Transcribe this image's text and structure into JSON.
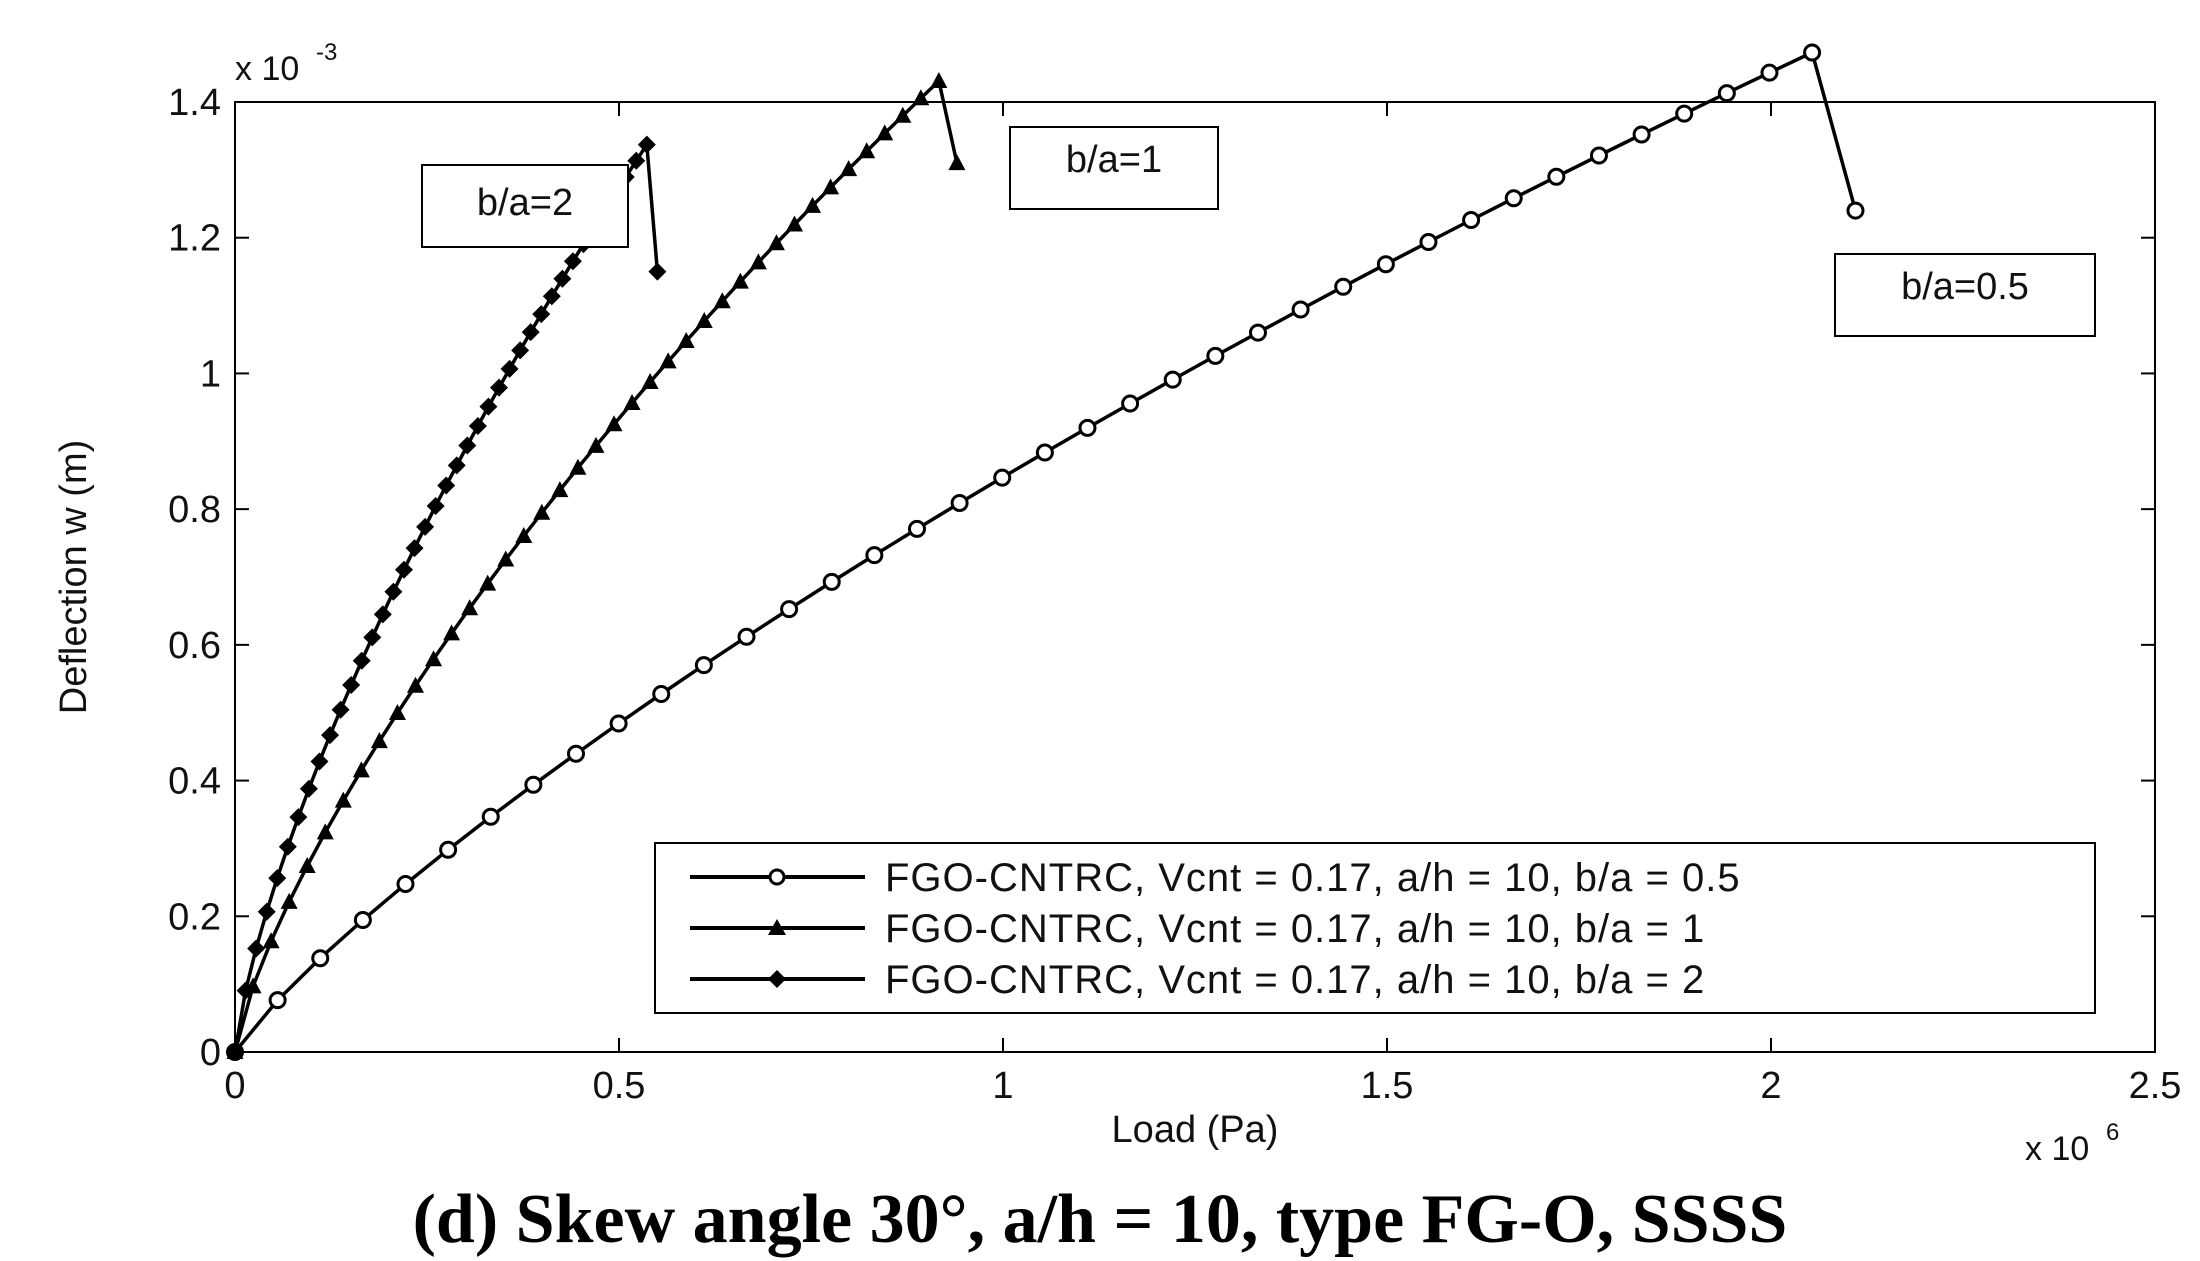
{
  "chart_data": {
    "type": "line",
    "title": "",
    "xlabel": "Load (Pa)",
    "ylabel": "Deflection w (m)",
    "x_multiplier": "x 10",
    "x_multiplier_exp": "6",
    "y_multiplier": "x 10",
    "y_multiplier_exp": "-3",
    "xlim": [
      0,
      2.5
    ],
    "ylim": [
      0,
      1.4
    ],
    "xticks": [
      0,
      0.5,
      1,
      1.5,
      2,
      2.5
    ],
    "xtick_labels": [
      "0",
      "0.5",
      "1",
      "1.5",
      "2",
      "2.5"
    ],
    "yticks": [
      0,
      0.2,
      0.4,
      0.6,
      0.8,
      1,
      1.2,
      1.4
    ],
    "ytick_labels": [
      "0",
      "0.2",
      "0.4",
      "0.6",
      "0.8",
      "1",
      "1.2",
      "1.4"
    ],
    "grid": false,
    "legend_position": "bottom-right",
    "series": [
      {
        "name": "FGO-CNTRC, Vcnt = 0.17, a/h = 10, b/a = 0.5",
        "marker": "circle",
        "x": [
          0,
          0.0555,
          0.111,
          0.1665,
          0.222,
          0.2775,
          0.333,
          0.3885,
          0.444,
          0.4995,
          0.555,
          0.6105,
          0.666,
          0.7215,
          0.777,
          0.8325,
          0.888,
          0.9435,
          0.999,
          1.0545,
          1.11,
          1.1655,
          1.221,
          1.2765,
          1.332,
          1.3875,
          1.443,
          1.4985,
          1.554,
          1.6095,
          1.665,
          1.7205,
          1.776,
          1.8315,
          1.887,
          1.9425,
          1.998,
          2.0535,
          2.11
        ],
        "y": [
          0,
          0.0764,
          0.1382,
          0.1945,
          0.2475,
          0.298,
          0.3467,
          0.3938,
          0.4395,
          0.4841,
          0.5276,
          0.5702,
          0.6119,
          0.6527,
          0.6928,
          0.7322,
          0.7709,
          0.809,
          0.8465,
          0.8834,
          0.9197,
          0.9556,
          0.9909,
          1.0258,
          1.0602,
          1.0942,
          1.1278,
          1.1609,
          1.1937,
          1.2261,
          1.2581,
          1.2898,
          1.3211,
          1.3521,
          1.3828,
          1.4131,
          1.4432,
          1.473,
          1.24
        ]
      },
      {
        "name": "FGO-CNTRC, Vcnt = 0.17, a/h = 10, b/a = 1",
        "marker": "triangle",
        "x": [
          0,
          0.0235,
          0.047,
          0.0705,
          0.094,
          0.1175,
          0.141,
          0.1645,
          0.188,
          0.2115,
          0.235,
          0.2585,
          0.282,
          0.3055,
          0.329,
          0.3525,
          0.376,
          0.3995,
          0.423,
          0.4465,
          0.47,
          0.4935,
          0.517,
          0.5405,
          0.564,
          0.5875,
          0.611,
          0.6345,
          0.658,
          0.6815,
          0.705,
          0.7285,
          0.752,
          0.7755,
          0.799,
          0.8225,
          0.846,
          0.8695,
          0.893,
          0.9165,
          0.94
        ],
        "y": [
          0,
          0.0967,
          0.1633,
          0.2212,
          0.2741,
          0.3236,
          0.3704,
          0.4151,
          0.4581,
          0.4996,
          0.5398,
          0.5788,
          0.6169,
          0.654,
          0.6902,
          0.7257,
          0.7605,
          0.7946,
          0.8281,
          0.861,
          0.8933,
          0.9251,
          0.9564,
          0.9873,
          1.0177,
          1.0477,
          1.0772,
          1.1064,
          1.1352,
          1.1637,
          1.1918,
          1.2195,
          1.247,
          1.2741,
          1.301,
          1.3275,
          1.3538,
          1.3798,
          1.4055,
          1.431,
          1.31
        ]
      },
      {
        "name": "FGO-CNTRC, Vcnt = 0.17, a/h = 10, b/a = 2",
        "marker": "diamond",
        "x": [
          0,
          0.01375,
          0.0275,
          0.04125,
          0.055,
          0.06875,
          0.0825,
          0.09625,
          0.11,
          0.12375,
          0.1375,
          0.15125,
          0.165,
          0.17875,
          0.1925,
          0.20625,
          0.22,
          0.23375,
          0.2475,
          0.26125,
          0.275,
          0.28875,
          0.3025,
          0.31625,
          0.33,
          0.34375,
          0.3575,
          0.37125,
          0.385,
          0.39875,
          0.4125,
          0.42625,
          0.44,
          0.45375,
          0.4675,
          0.48125,
          0.495,
          0.50875,
          0.5225,
          0.53625,
          0.55
        ],
        "y": [
          0,
          0.0904,
          0.1526,
          0.2067,
          0.2562,
          0.3024,
          0.3461,
          0.3879,
          0.4281,
          0.4669,
          0.5044,
          0.5409,
          0.5765,
          0.6111,
          0.645,
          0.6782,
          0.7107,
          0.7425,
          0.7738,
          0.8046,
          0.8348,
          0.8645,
          0.8938,
          0.9226,
          0.951,
          0.979,
          1.0067,
          1.0339,
          1.0609,
          1.0874,
          1.1137,
          1.1396,
          1.1653,
          1.1906,
          1.2157,
          1.2405,
          1.2651,
          1.2894,
          1.3134,
          1.3372,
          1.15
        ]
      }
    ],
    "annotations": [
      {
        "text": "b/a=2"
      },
      {
        "text": "b/a=1"
      },
      {
        "text": "b/a=0.5"
      }
    ]
  },
  "caption": "(d) Skew angle 30°, a/h = 10, type FG-O, SSSS"
}
